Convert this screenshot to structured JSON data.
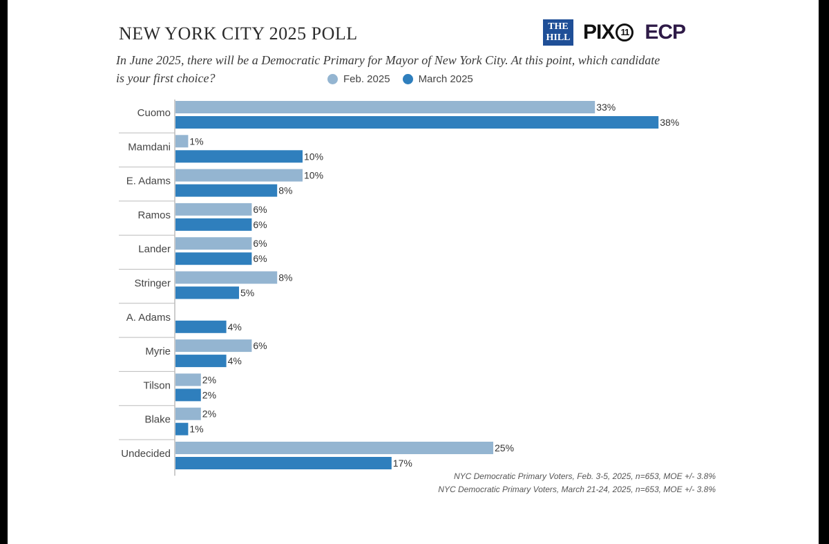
{
  "header": {
    "title": "NEW YORK CITY 2025 POLL",
    "subtitle": "In June 2025, there will be a Democratic Primary for Mayor of New York City. At this point, which candidate is your first choice?"
  },
  "logos": {
    "the_hill": "THE HILL",
    "pix": "PIX",
    "pix_number": "11",
    "ecp": "ECP"
  },
  "colors": {
    "feb": "#94b5d1",
    "march": "#2f7fbd"
  },
  "footnotes": [
    "NYC Democratic Primary Voters, Feb. 3-5, 2025, n=653, MOE +/- 3.8%",
    "NYC Democratic Primary Voters, March 21-24, 2025, n=653, MOE +/- 3.8%"
  ],
  "chart_data": {
    "type": "bar",
    "orientation": "horizontal",
    "categories": [
      "Cuomo",
      "Mamdani",
      "E. Adams",
      "Ramos",
      "Lander",
      "Stringer",
      "A. Adams",
      "Myrie",
      "Tilson",
      "Blake",
      "Undecided"
    ],
    "series": [
      {
        "name": "Feb. 2025",
        "values": [
          33,
          1,
          10,
          6,
          6,
          8,
          null,
          6,
          2,
          2,
          25
        ]
      },
      {
        "name": "March 2025",
        "values": [
          38,
          10,
          8,
          6,
          6,
          5,
          4,
          4,
          2,
          1,
          17
        ]
      }
    ],
    "value_suffix": "%",
    "legend": "top"
  }
}
